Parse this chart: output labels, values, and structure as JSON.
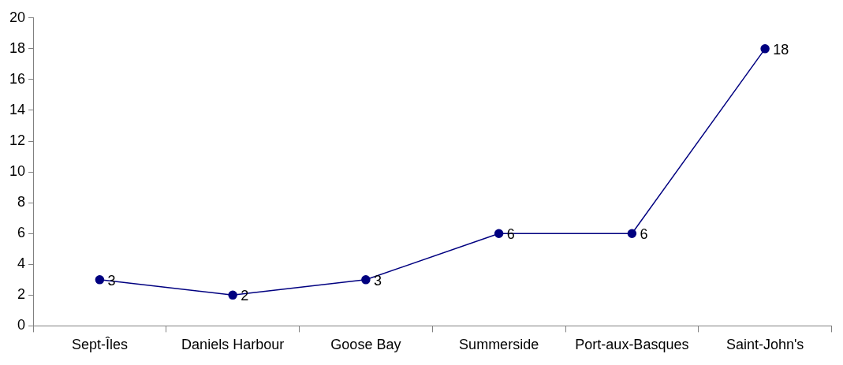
{
  "chart_data": {
    "type": "line",
    "categories": [
      "Sept-Îles",
      "Daniels Harbour",
      "Goose Bay",
      "Summerside",
      "Port-aux-Basques",
      "Saint-John's"
    ],
    "series": [
      {
        "color": "#000080",
        "values": [
          3,
          2,
          3,
          6,
          6,
          18
        ]
      }
    ],
    "ylim": [
      0,
      20
    ],
    "yticks": [
      0,
      2,
      4,
      6,
      8,
      10,
      12,
      14,
      16,
      18,
      20
    ],
    "grid": false,
    "legend": false,
    "marker": "circle",
    "line_style": "solid",
    "data_labels": true
  }
}
